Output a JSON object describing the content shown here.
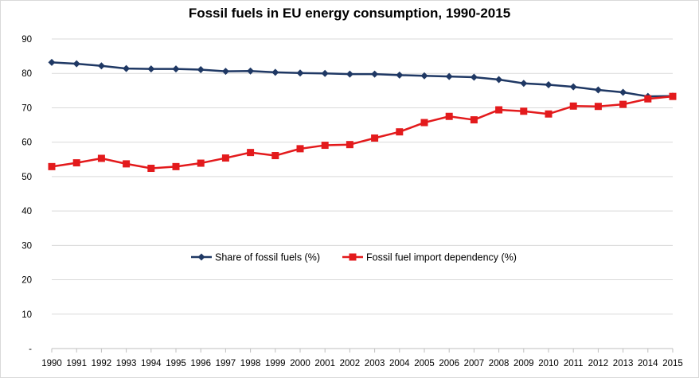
{
  "chart_data": {
    "type": "line",
    "title": "Fossil fuels in EU energy consumption, 1990-2015",
    "xlabel": "",
    "ylabel": "",
    "ylim": [
      0,
      90
    ],
    "yticks": [
      "-",
      "10",
      "20",
      "30",
      "40",
      "50",
      "60",
      "70",
      "80",
      "90"
    ],
    "categories": [
      "1990",
      "1991",
      "1992",
      "1993",
      "1994",
      "1995",
      "1996",
      "1997",
      "1998",
      "1999",
      "2000",
      "2001",
      "2002",
      "2003",
      "2004",
      "2005",
      "2006",
      "2007",
      "2008",
      "2009",
      "2010",
      "2011",
      "2012",
      "2013",
      "2014",
      "2015"
    ],
    "series": [
      {
        "name": "Share of fossil fuels (%)",
        "color": "#1f3864",
        "marker": "diamond",
        "values": [
          83.2,
          82.8,
          82.2,
          81.4,
          81.3,
          81.3,
          81.1,
          80.6,
          80.7,
          80.3,
          80.1,
          80.0,
          79.8,
          79.8,
          79.5,
          79.3,
          79.1,
          78.9,
          78.2,
          77.1,
          76.7,
          76.1,
          75.2,
          74.5,
          73.3,
          73.4
        ]
      },
      {
        "name": "Fossil fuel import dependency (%)",
        "color": "#e31a1c",
        "marker": "square",
        "values": [
          52.9,
          54.0,
          55.3,
          53.7,
          52.4,
          52.9,
          53.9,
          55.4,
          57.0,
          56.1,
          58.1,
          59.1,
          59.3,
          61.2,
          63.0,
          65.7,
          67.5,
          66.5,
          69.4,
          69.0,
          68.2,
          70.5,
          70.4,
          71.0,
          72.6,
          73.3
        ]
      }
    ],
    "grid": true,
    "legend_position": "center"
  }
}
